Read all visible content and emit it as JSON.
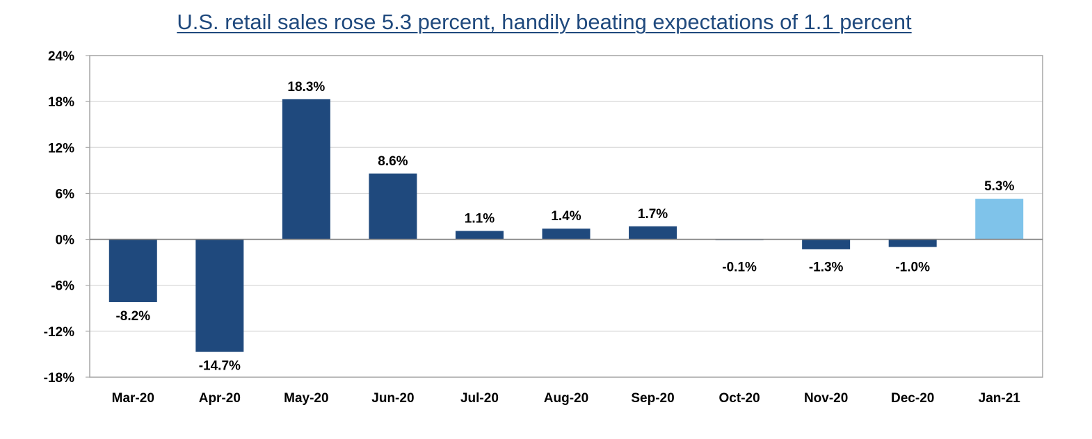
{
  "chart_data": {
    "type": "bar",
    "title": "U.S. retail sales rose 5.3 percent, handily beating expectations of 1.1 percent",
    "xlabel": "",
    "ylabel": "",
    "categories": [
      "Mar-20",
      "Apr-20",
      "May-20",
      "Jun-20",
      "Jul-20",
      "Aug-20",
      "Sep-20",
      "Oct-20",
      "Nov-20",
      "Dec-20",
      "Jan-21"
    ],
    "values": [
      -8.2,
      -14.7,
      18.3,
      8.6,
      1.1,
      1.4,
      1.7,
      -0.1,
      -1.3,
      -1.0,
      5.3
    ],
    "data_labels": [
      "-8.2%",
      "-14.7%",
      "18.3%",
      "8.6%",
      "1.1%",
      "1.4%",
      "1.7%",
      "-0.1%",
      "-1.3%",
      "-1.0%",
      "5.3%"
    ],
    "ylim": [
      -18,
      24
    ],
    "yticks": [
      24,
      18,
      12,
      6,
      0,
      -6,
      -12,
      -18
    ],
    "ytick_labels": [
      "24%",
      "18%",
      "12%",
      "6%",
      "0%",
      "-6%",
      "-12%",
      "-18%"
    ],
    "grid": true,
    "legend": "none",
    "colors": {
      "bar": "#1f497d",
      "highlight_bar": "#7fc3ea",
      "title": "#1f497d",
      "grid": "#d9d9d9",
      "frame": "#a6a6a6"
    },
    "highlight_index": 10
  }
}
